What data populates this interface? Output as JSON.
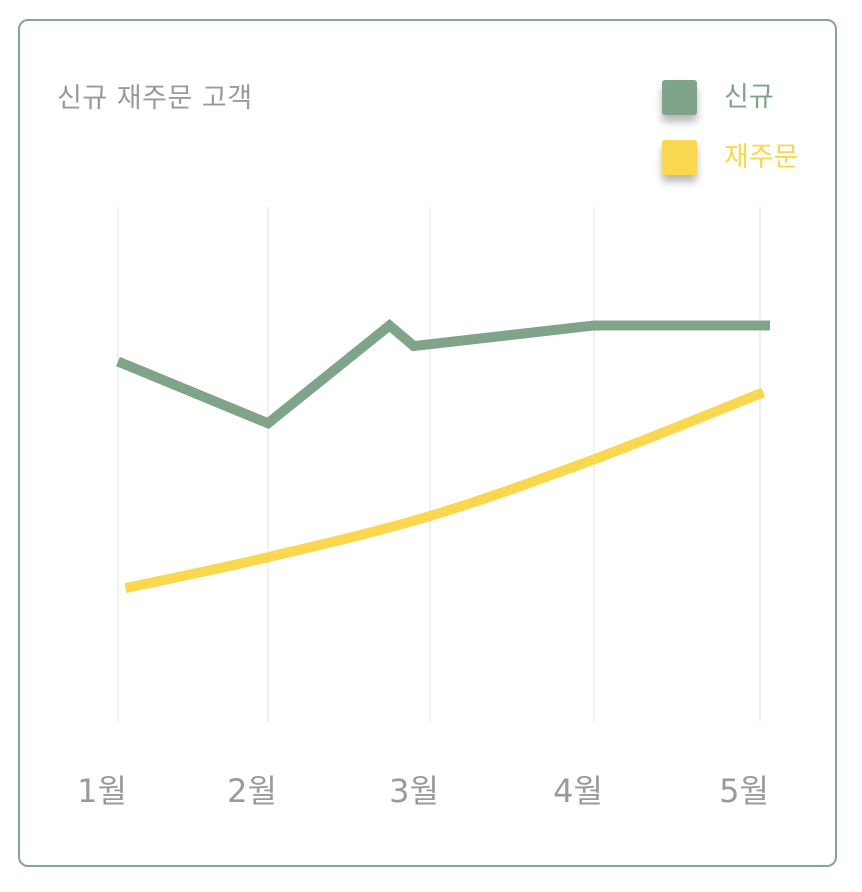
{
  "colors": {
    "border": "#85a88c",
    "new": "#7fa48a",
    "reorder": "#f9d84f",
    "grid": "#ececec",
    "label": "#9a9a9a"
  },
  "chart_data": {
    "type": "line",
    "title": "신규 재주문 고객",
    "categories": [
      "1월",
      "2월",
      "3월",
      "4월",
      "5월"
    ],
    "grid": "vertical",
    "legend_position": "top-right",
    "series": [
      {
        "name": "신규",
        "color": "#7fa48a",
        "x": [
          1,
          2,
          2.75,
          2.9,
          4,
          5.06
        ],
        "values": [
          0.7,
          0.58,
          0.77,
          0.73,
          0.77,
          0.77
        ],
        "smooth": false
      },
      {
        "name": "재주문",
        "color": "#f9d84f",
        "x": [
          1.05,
          2,
          3,
          4,
          5.02
        ],
        "values": [
          0.26,
          0.32,
          0.4,
          0.51,
          0.64
        ],
        "smooth": true
      }
    ]
  }
}
